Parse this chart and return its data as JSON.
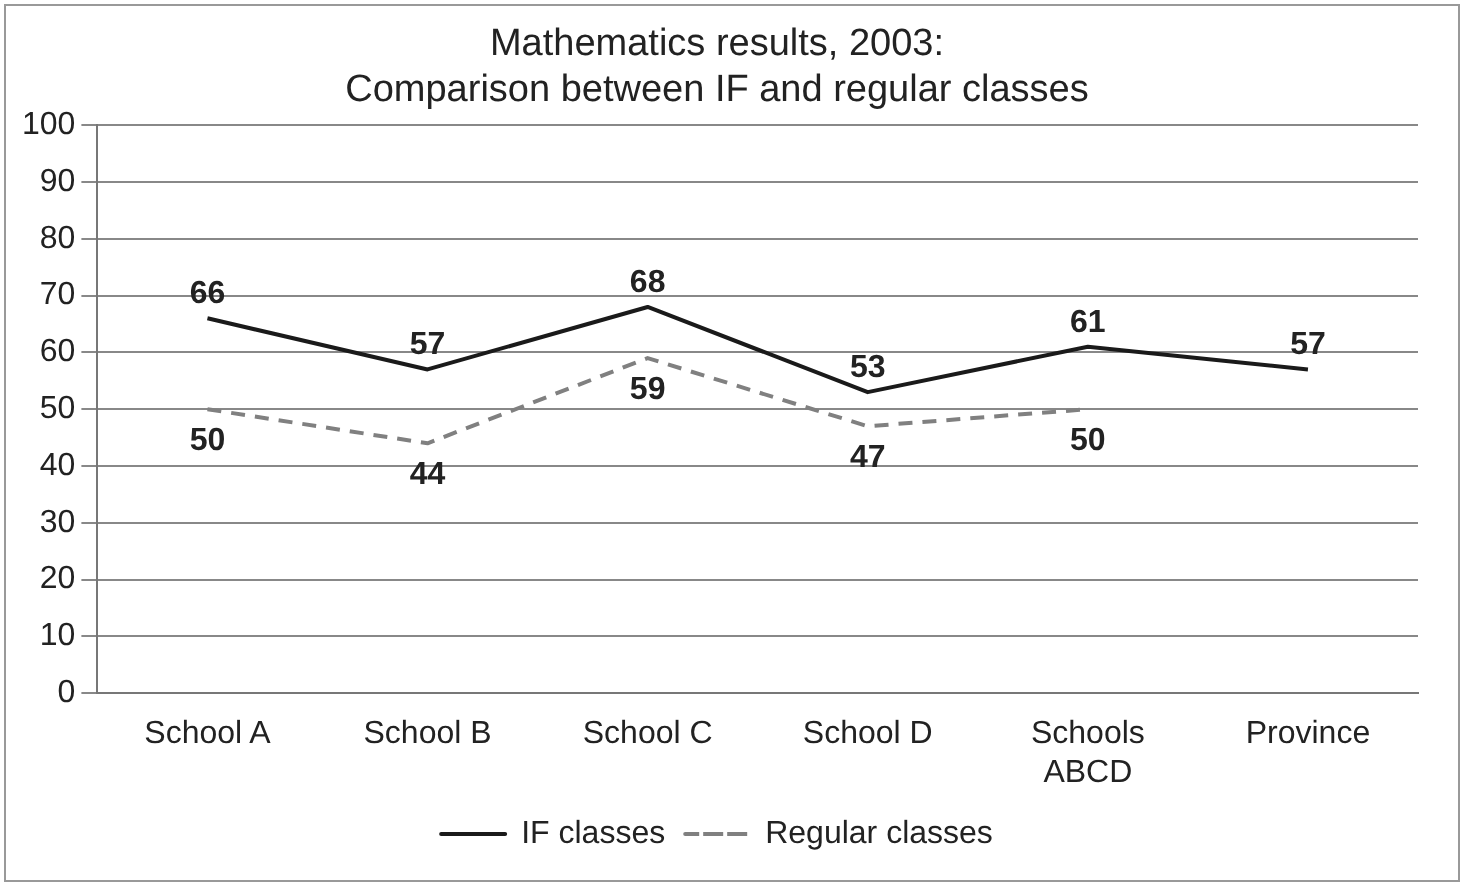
{
  "chart_data": {
    "type": "line",
    "title": "Mathematics results, 2003:\nComparison between IF and regular classes",
    "categories": [
      "School A",
      "School B",
      "School C",
      "School D",
      "Schools ABCD",
      "Province"
    ],
    "series": [
      {
        "name": "IF classes",
        "color": "#1a1a1a",
        "values": [
          66,
          57,
          68,
          53,
          61,
          57
        ],
        "line_style": "solid"
      },
      {
        "name": "Regular classes",
        "color": "#808080",
        "values": [
          50,
          44,
          59,
          47,
          50,
          null
        ],
        "line_style": "dashed"
      }
    ],
    "ylim": [
      0,
      100
    ],
    "yticks": [
      0,
      10,
      20,
      30,
      40,
      50,
      60,
      70,
      80,
      90,
      100
    ],
    "grid": "y",
    "legend": "bottom",
    "marker": "none",
    "data_labels": true
  }
}
